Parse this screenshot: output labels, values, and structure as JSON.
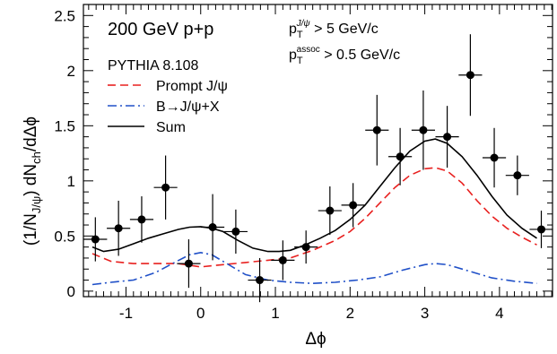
{
  "chart_data": {
    "type": "scatter",
    "xlabel": "Δϕ",
    "ylabel": "(1/N_{J/ψ}) dN_ch/dΔϕ",
    "xlim": [
      -1.57,
      4.71
    ],
    "ylim": [
      -0.05,
      2.6
    ],
    "grid": false,
    "legend_position": "top-left",
    "x_ticks": [
      -1,
      0,
      1,
      2,
      3,
      4
    ],
    "y_ticks": [
      0,
      0.5,
      1,
      1.5,
      2,
      2.5
    ],
    "x_tick_labels": [
      "-1",
      "0",
      "1",
      "2",
      "3",
      "4"
    ],
    "y_tick_labels": [
      "0",
      "0.5",
      "1",
      "1.5",
      "2",
      "2.5"
    ],
    "annotations": {
      "energy": "200 GeV p+p",
      "generator": "PYTHIA 8.108",
      "cut_trigger": "p_T^{J/ψ} > 5 GeV/c",
      "cut_assoc": "p_T^{assoc} > 0.5 GeV/c"
    },
    "legend": [
      {
        "label": "Prompt J/ψ",
        "style": "dashed",
        "color": "#e8201f"
      },
      {
        "label": "B→J/ψ+X",
        "style": "dashdot",
        "color": "#2050c8"
      },
      {
        "label": "Sum",
        "style": "solid",
        "color": "#000000"
      }
    ],
    "data_points": {
      "name": "data",
      "x": [
        -1.41,
        -1.1,
        -0.79,
        -0.47,
        -0.16,
        0.16,
        0.47,
        0.79,
        1.1,
        1.41,
        1.73,
        2.04,
        2.36,
        2.67,
        2.98,
        3.3,
        3.61,
        3.93,
        4.24,
        4.56
      ],
      "y": [
        0.47,
        0.57,
        0.65,
        0.94,
        0.25,
        0.58,
        0.54,
        0.1,
        0.28,
        0.4,
        0.73,
        0.78,
        1.46,
        1.22,
        1.46,
        1.4,
        1.96,
        1.21,
        1.05,
        0.56
      ],
      "x_err": 0.157,
      "y_err": [
        0.2,
        0.25,
        0.21,
        0.29,
        0.22,
        0.3,
        0.2,
        0.2,
        0.18,
        0.15,
        0.22,
        0.2,
        0.32,
        0.26,
        0.36,
        0.28,
        0.37,
        0.27,
        0.18,
        0.17
      ]
    },
    "series": [
      {
        "name": "Sum",
        "x": [
          -1.45,
          -1.3,
          -1.1,
          -0.9,
          -0.7,
          -0.5,
          -0.3,
          -0.15,
          0,
          0.15,
          0.3,
          0.5,
          0.7,
          0.9,
          1.05,
          1.2,
          1.4,
          1.6,
          1.8,
          2.0,
          2.2,
          2.4,
          2.6,
          2.8,
          3.0,
          3.14,
          3.3,
          3.5,
          3.7,
          3.9,
          4.1,
          4.3,
          4.5
        ],
        "y": [
          0.4,
          0.36,
          0.38,
          0.43,
          0.48,
          0.52,
          0.56,
          0.58,
          0.585,
          0.57,
          0.54,
          0.46,
          0.39,
          0.36,
          0.36,
          0.37,
          0.42,
          0.48,
          0.55,
          0.65,
          0.78,
          0.95,
          1.12,
          1.27,
          1.36,
          1.38,
          1.34,
          1.22,
          1.05,
          0.86,
          0.69,
          0.57,
          0.48
        ]
      },
      {
        "name": "Prompt J/ψ",
        "x": [
          -1.45,
          -1.2,
          -0.9,
          -0.6,
          -0.3,
          0,
          0.3,
          0.6,
          0.9,
          1.2,
          1.5,
          1.8,
          2.0,
          2.2,
          2.4,
          2.6,
          2.8,
          3.0,
          3.14,
          3.3,
          3.5,
          3.7,
          3.9,
          4.1,
          4.3,
          4.5
        ],
        "y": [
          0.34,
          0.27,
          0.25,
          0.25,
          0.25,
          0.22,
          0.24,
          0.26,
          0.28,
          0.3,
          0.37,
          0.46,
          0.54,
          0.66,
          0.8,
          0.94,
          1.05,
          1.11,
          1.12,
          1.09,
          0.98,
          0.82,
          0.68,
          0.57,
          0.49,
          0.42
        ]
      },
      {
        "name": "B→J/ψ+X",
        "x": [
          -1.45,
          -1.2,
          -0.9,
          -0.6,
          -0.35,
          -0.15,
          0,
          0.15,
          0.35,
          0.6,
          0.9,
          1.2,
          1.5,
          1.8,
          2.1,
          2.4,
          2.7,
          3.0,
          3.14,
          3.3,
          3.6,
          3.9,
          4.2,
          4.5
        ],
        "y": [
          0.06,
          0.08,
          0.1,
          0.17,
          0.26,
          0.33,
          0.35,
          0.33,
          0.25,
          0.15,
          0.1,
          0.08,
          0.07,
          0.08,
          0.1,
          0.13,
          0.19,
          0.24,
          0.25,
          0.24,
          0.18,
          0.12,
          0.09,
          0.07
        ]
      }
    ]
  }
}
